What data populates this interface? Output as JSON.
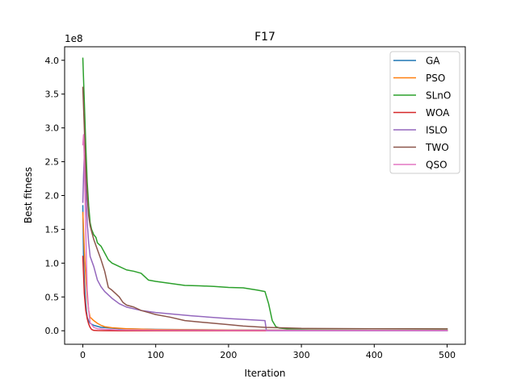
{
  "chart_data": {
    "type": "line",
    "title": "F17",
    "xlabel": "Iteration",
    "ylabel": "Best fitness",
    "y_scale_label": "1e8",
    "xlim": [
      -25,
      525
    ],
    "ylim": [
      -0.2,
      4.2
    ],
    "x_ticks": [
      0,
      100,
      200,
      300,
      400,
      500
    ],
    "x_tick_labels": [
      "0",
      "100",
      "200",
      "300",
      "400",
      "500"
    ],
    "y_ticks": [
      0,
      0.5,
      1.0,
      1.5,
      2.0,
      2.5,
      3.0,
      3.5,
      4.0
    ],
    "y_tick_labels": [
      "0.0",
      "0.5",
      "1.0",
      "1.5",
      "2.0",
      "2.5",
      "3.0",
      "3.5",
      "4.0"
    ],
    "grid": false,
    "legend_position": "top-right",
    "series": [
      {
        "name": "GA",
        "color": "#1f77b4",
        "points": [
          [
            0,
            1.85
          ],
          [
            1,
            1.05
          ],
          [
            2,
            0.75
          ],
          [
            3,
            0.55
          ],
          [
            4,
            0.4
          ],
          [
            5,
            0.28
          ],
          [
            6,
            0.2
          ],
          [
            8,
            0.14
          ],
          [
            10,
            0.11
          ],
          [
            15,
            0.08
          ],
          [
            25,
            0.05
          ],
          [
            50,
            0.03
          ],
          [
            100,
            0.02
          ],
          [
            200,
            0.012
          ],
          [
            300,
            0.008
          ],
          [
            400,
            0.006
          ],
          [
            500,
            0.005
          ]
        ]
      },
      {
        "name": "PSO",
        "color": "#ff7f0e",
        "points": [
          [
            0,
            1.75
          ],
          [
            2,
            1.2
          ],
          [
            4,
            0.8
          ],
          [
            6,
            0.5
          ],
          [
            8,
            0.3
          ],
          [
            10,
            0.2
          ],
          [
            15,
            0.15
          ],
          [
            20,
            0.11
          ],
          [
            25,
            0.08
          ],
          [
            30,
            0.06
          ],
          [
            40,
            0.045
          ],
          [
            60,
            0.03
          ],
          [
            100,
            0.018
          ],
          [
            200,
            0.01
          ],
          [
            300,
            0.007
          ],
          [
            400,
            0.005
          ],
          [
            500,
            0.004
          ]
        ]
      },
      {
        "name": "SLnO",
        "color": "#2ca02c",
        "points": [
          [
            0,
            4.03
          ],
          [
            2,
            3.4
          ],
          [
            4,
            2.75
          ],
          [
            6,
            2.2
          ],
          [
            8,
            1.85
          ],
          [
            10,
            1.6
          ],
          [
            12,
            1.5
          ],
          [
            15,
            1.42
          ],
          [
            18,
            1.38
          ],
          [
            20,
            1.3
          ],
          [
            25,
            1.25
          ],
          [
            30,
            1.15
          ],
          [
            35,
            1.05
          ],
          [
            40,
            1.0
          ],
          [
            50,
            0.95
          ],
          [
            60,
            0.9
          ],
          [
            70,
            0.88
          ],
          [
            80,
            0.85
          ],
          [
            90,
            0.75
          ],
          [
            100,
            0.73
          ],
          [
            120,
            0.7
          ],
          [
            140,
            0.67
          ],
          [
            160,
            0.665
          ],
          [
            180,
            0.655
          ],
          [
            200,
            0.64
          ],
          [
            220,
            0.635
          ],
          [
            240,
            0.6
          ],
          [
            250,
            0.58
          ],
          [
            255,
            0.4
          ],
          [
            260,
            0.15
          ],
          [
            265,
            0.06
          ],
          [
            270,
            0.04
          ],
          [
            280,
            0.03
          ],
          [
            300,
            0.03
          ],
          [
            400,
            0.028
          ],
          [
            500,
            0.025
          ]
        ]
      },
      {
        "name": "WOA",
        "color": "#d62728",
        "points": [
          [
            0,
            1.1
          ],
          [
            2,
            0.55
          ],
          [
            4,
            0.3
          ],
          [
            6,
            0.18
          ],
          [
            8,
            0.1
          ],
          [
            10,
            0.05
          ],
          [
            12,
            0.02
          ],
          [
            15,
            0.005
          ],
          [
            20,
            0.002
          ],
          [
            50,
            0.0
          ],
          [
            500,
            0.0
          ]
        ]
      },
      {
        "name": "ISLO",
        "color": "#9467bd",
        "points": [
          [
            0,
            1.9
          ],
          [
            1,
            2.3
          ],
          [
            2,
            2.6
          ],
          [
            4,
            2.1
          ],
          [
            6,
            1.6
          ],
          [
            8,
            1.3
          ],
          [
            10,
            1.1
          ],
          [
            15,
            0.95
          ],
          [
            20,
            0.75
          ],
          [
            25,
            0.65
          ],
          [
            30,
            0.58
          ],
          [
            40,
            0.48
          ],
          [
            50,
            0.4
          ],
          [
            60,
            0.35
          ],
          [
            80,
            0.3
          ],
          [
            100,
            0.27
          ],
          [
            150,
            0.22
          ],
          [
            200,
            0.18
          ],
          [
            250,
            0.15
          ],
          [
            252,
            0.0
          ],
          [
            500,
            0.0
          ]
        ]
      },
      {
        "name": "TWO",
        "color": "#8c564b",
        "points": [
          [
            0,
            3.6
          ],
          [
            2,
            3.0
          ],
          [
            4,
            2.4
          ],
          [
            6,
            2.0
          ],
          [
            8,
            1.7
          ],
          [
            10,
            1.55
          ],
          [
            15,
            1.35
          ],
          [
            20,
            1.2
          ],
          [
            25,
            1.05
          ],
          [
            30,
            0.88
          ],
          [
            35,
            0.64
          ],
          [
            40,
            0.6
          ],
          [
            45,
            0.55
          ],
          [
            50,
            0.5
          ],
          [
            55,
            0.42
          ],
          [
            60,
            0.38
          ],
          [
            70,
            0.35
          ],
          [
            80,
            0.3
          ],
          [
            90,
            0.27
          ],
          [
            100,
            0.24
          ],
          [
            120,
            0.2
          ],
          [
            140,
            0.15
          ],
          [
            160,
            0.13
          ],
          [
            180,
            0.11
          ],
          [
            200,
            0.09
          ],
          [
            220,
            0.07
          ],
          [
            250,
            0.05
          ],
          [
            300,
            0.035
          ],
          [
            400,
            0.03
          ],
          [
            500,
            0.028
          ]
        ]
      },
      {
        "name": "QSO",
        "color": "#e377c2",
        "points": [
          [
            0,
            2.75
          ],
          [
            1,
            2.9
          ],
          [
            2,
            2.5
          ],
          [
            3,
            2.0
          ],
          [
            4,
            1.5
          ],
          [
            5,
            1.0
          ],
          [
            6,
            0.6
          ],
          [
            8,
            0.3
          ],
          [
            10,
            0.12
          ],
          [
            15,
            0.05
          ],
          [
            20,
            0.03
          ],
          [
            30,
            0.02
          ],
          [
            50,
            0.012
          ],
          [
            100,
            0.008
          ],
          [
            200,
            0.006
          ],
          [
            300,
            0.005
          ],
          [
            400,
            0.005
          ],
          [
            500,
            0.005
          ]
        ]
      }
    ]
  }
}
